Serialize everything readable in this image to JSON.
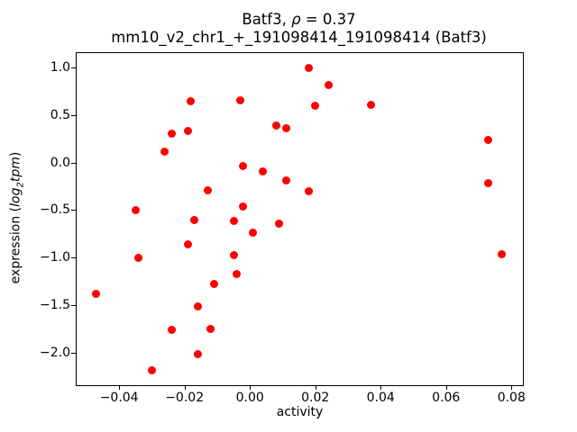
{
  "title": {
    "prefix": "Batf3, ",
    "rho": "ρ",
    "suffix": " = 0.37"
  },
  "subtitle": "mm10_v2_chr1_+_191098414_191098414 (Batf3)",
  "axis_labels": {
    "xlabel": "activity",
    "ylabel_prefix": "expression (",
    "ylabel_log": "log",
    "ylabel_sub": "2",
    "ylabel_tpm": "tpm",
    "ylabel_suffix": ")"
  },
  "chart_data": {
    "type": "scatter",
    "title": "Batf3, ρ = 0.37",
    "subtitle": "mm10_v2_chr1_+_191098414_191098414 (Batf3)",
    "xlabel": "activity",
    "ylabel": "expression (log2 tpm)",
    "marker_color": "#ff0000",
    "marker_shape": "circle",
    "grid": false,
    "legend": false,
    "xlim": [
      -0.053,
      0.0835
    ],
    "ylim": [
      -2.34,
      1.15
    ],
    "x_tick_values": [
      -0.04,
      -0.02,
      0.0,
      0.02,
      0.04,
      0.06,
      0.08
    ],
    "x_tick_labels": [
      "−0.04",
      "−0.02",
      "0.00",
      "0.02",
      "0.04",
      "0.06",
      "0.08"
    ],
    "y_tick_values": [
      1.0,
      0.5,
      0.0,
      -0.5,
      -1.0,
      -1.5,
      -2.0
    ],
    "y_tick_labels": [
      "1.0",
      "0.5",
      "0.0",
      "−0.5",
      "−1.0",
      "−1.5",
      "−2.0"
    ],
    "points": [
      [
        -0.047,
        -1.38
      ],
      [
        -0.035,
        -0.5
      ],
      [
        -0.034,
        -1.0
      ],
      [
        -0.03,
        -2.18
      ],
      [
        -0.026,
        0.11
      ],
      [
        -0.024,
        0.3
      ],
      [
        -0.024,
        -1.76
      ],
      [
        -0.019,
        0.33
      ],
      [
        -0.019,
        -0.86
      ],
      [
        -0.018,
        0.64
      ],
      [
        -0.017,
        -0.6
      ],
      [
        -0.016,
        -1.51
      ],
      [
        -0.016,
        -2.01
      ],
      [
        -0.013,
        -0.29
      ],
      [
        -0.012,
        -1.75
      ],
      [
        -0.011,
        -1.28
      ],
      [
        -0.005,
        -0.61
      ],
      [
        -0.005,
        -0.97
      ],
      [
        -0.004,
        -1.17
      ],
      [
        -0.003,
        0.65
      ],
      [
        -0.002,
        -0.04
      ],
      [
        -0.002,
        -0.46
      ],
      [
        0.001,
        -0.74
      ],
      [
        0.004,
        -0.09
      ],
      [
        0.008,
        0.39
      ],
      [
        0.009,
        -0.64
      ],
      [
        0.011,
        0.36
      ],
      [
        0.011,
        -0.19
      ],
      [
        0.018,
        0.99
      ],
      [
        0.018,
        -0.3
      ],
      [
        0.02,
        0.6
      ],
      [
        0.024,
        0.81
      ],
      [
        0.037,
        0.61
      ],
      [
        0.073,
        0.24
      ],
      [
        0.073,
        -0.22
      ],
      [
        0.077,
        -0.96
      ]
    ]
  }
}
